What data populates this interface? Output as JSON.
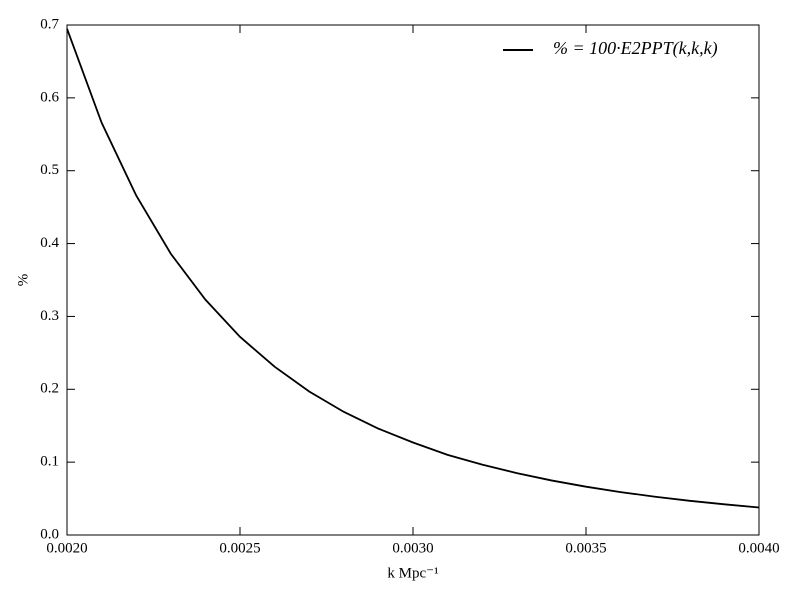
{
  "chart_data": {
    "type": "line",
    "x": [
      0.002,
      0.0021,
      0.0022,
      0.0023,
      0.0024,
      0.0025,
      0.0026,
      0.0027,
      0.0028,
      0.0029,
      0.003,
      0.0031,
      0.0032,
      0.0033,
      0.0034,
      0.0035,
      0.0036,
      0.0037,
      0.0038,
      0.0039,
      0.004
    ],
    "series": [
      {
        "name": "% = 100·E2PPT(k,k,k)",
        "color": "#000000",
        "values": [
          0.695,
          0.566,
          0.466,
          0.386,
          0.323,
          0.272,
          0.231,
          0.197,
          0.169,
          0.146,
          0.127,
          0.11,
          0.0966,
          0.0849,
          0.0749,
          0.0663,
          0.0589,
          0.0525,
          0.0469,
          0.0421,
          0.0378
        ]
      }
    ],
    "x_label": "k Mpc⁻¹",
    "y_label": "%",
    "xlim": [
      0.002,
      0.004
    ],
    "xticks": [
      {
        "value": 0.002,
        "label": "0.0020"
      },
      {
        "value": 0.0025,
        "label": "0.0025"
      },
      {
        "value": 0.003,
        "label": "0.0030"
      },
      {
        "value": 0.0035,
        "label": "0.0035"
      },
      {
        "value": 0.004,
        "label": "0.0040"
      }
    ],
    "ylim": [
      0,
      0.7
    ],
    "yticks": [
      {
        "value": 0,
        "label": "0.0"
      },
      0.1,
      0.2,
      0.3,
      0.4,
      0.5,
      0.6,
      0.7
    ],
    "grid": false,
    "legend": "upper right"
  }
}
